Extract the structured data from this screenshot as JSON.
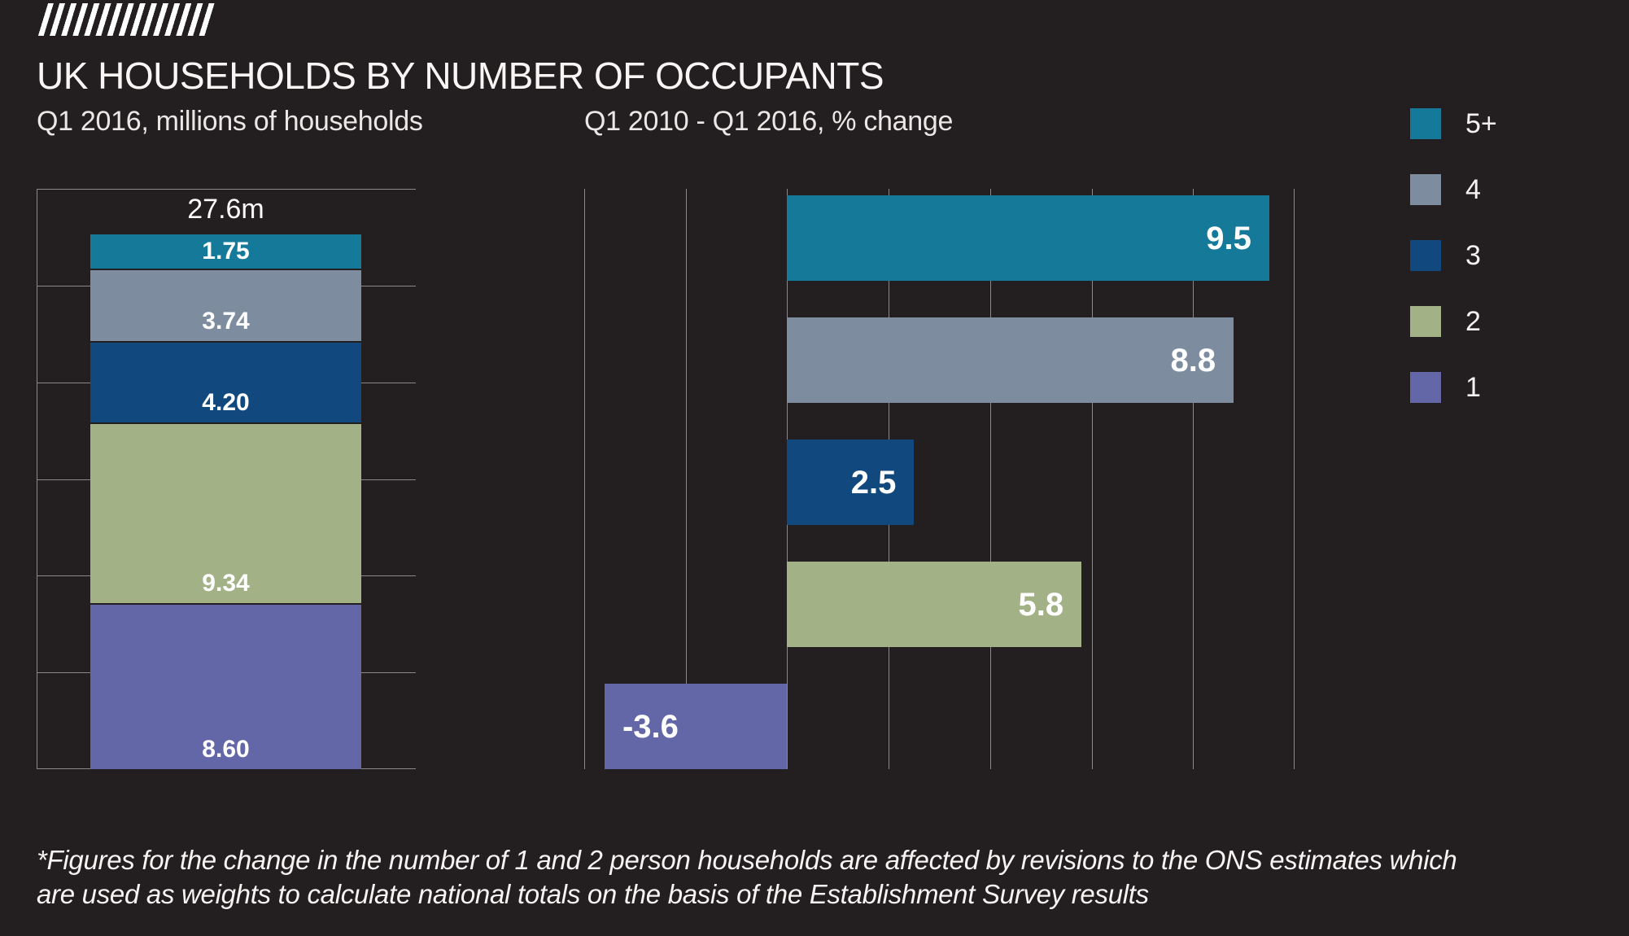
{
  "page": {
    "title": "UK HOUSEHOLDS BY NUMBER OF OCCUPANTS",
    "background_color": "#231f20",
    "text_color": "#ffffff",
    "gridline_color": "#8a8889"
  },
  "logo": {
    "icon": "diagonal-stripes-logo",
    "color": "#ffffff"
  },
  "legend": {
    "position": "top-right",
    "items": [
      {
        "label": "5+",
        "color": "#157a99"
      },
      {
        "label": "4",
        "color": "#7d8c9e"
      },
      {
        "label": "3",
        "color": "#11497e"
      },
      {
        "label": "2",
        "color": "#a3b286"
      },
      {
        "label": "1",
        "color": "#6367a7"
      }
    ]
  },
  "chart_data": [
    {
      "type": "bar",
      "variant": "stacked-column",
      "title": "Q1 2016, millions of households",
      "total_label": "27.6m",
      "categories": [
        "5+",
        "4",
        "3",
        "2",
        "1"
      ],
      "values": [
        1.75,
        3.74,
        4.2,
        9.34,
        8.6
      ],
      "value_labels": [
        "1.75",
        "3.74",
        "4.20",
        "9.34",
        "8.60"
      ],
      "colors": [
        "#157a99",
        "#7d8c9e",
        "#11497e",
        "#a3b286",
        "#6367a7"
      ],
      "ylim": [
        0,
        30
      ],
      "gridline_step": 5,
      "grid": "horizontal",
      "legend_position": "top-right"
    },
    {
      "type": "bar",
      "variant": "horizontal",
      "title": "Q1 2010 - Q1 2016, % change",
      "categories": [
        "5+",
        "4",
        "3",
        "2",
        "1"
      ],
      "values": [
        9.5,
        8.8,
        2.5,
        5.8,
        -3.6
      ],
      "value_labels": [
        "9.5",
        "8.8",
        "2.5",
        "5.8",
        "-3.6"
      ],
      "colors": [
        "#157a99",
        "#7d8c9e",
        "#11497e",
        "#a3b286",
        "#6367a7"
      ],
      "xlim": [
        -4,
        10
      ],
      "gridline_step": 2,
      "grid": "vertical"
    }
  ],
  "footnote": {
    "line1": "*Figures for the change in the number of 1 and 2 person households are affected by revisions to the ONS estimates which",
    "line2": "are used as weights to calculate national totals on the basis of the Establishment Survey results"
  }
}
